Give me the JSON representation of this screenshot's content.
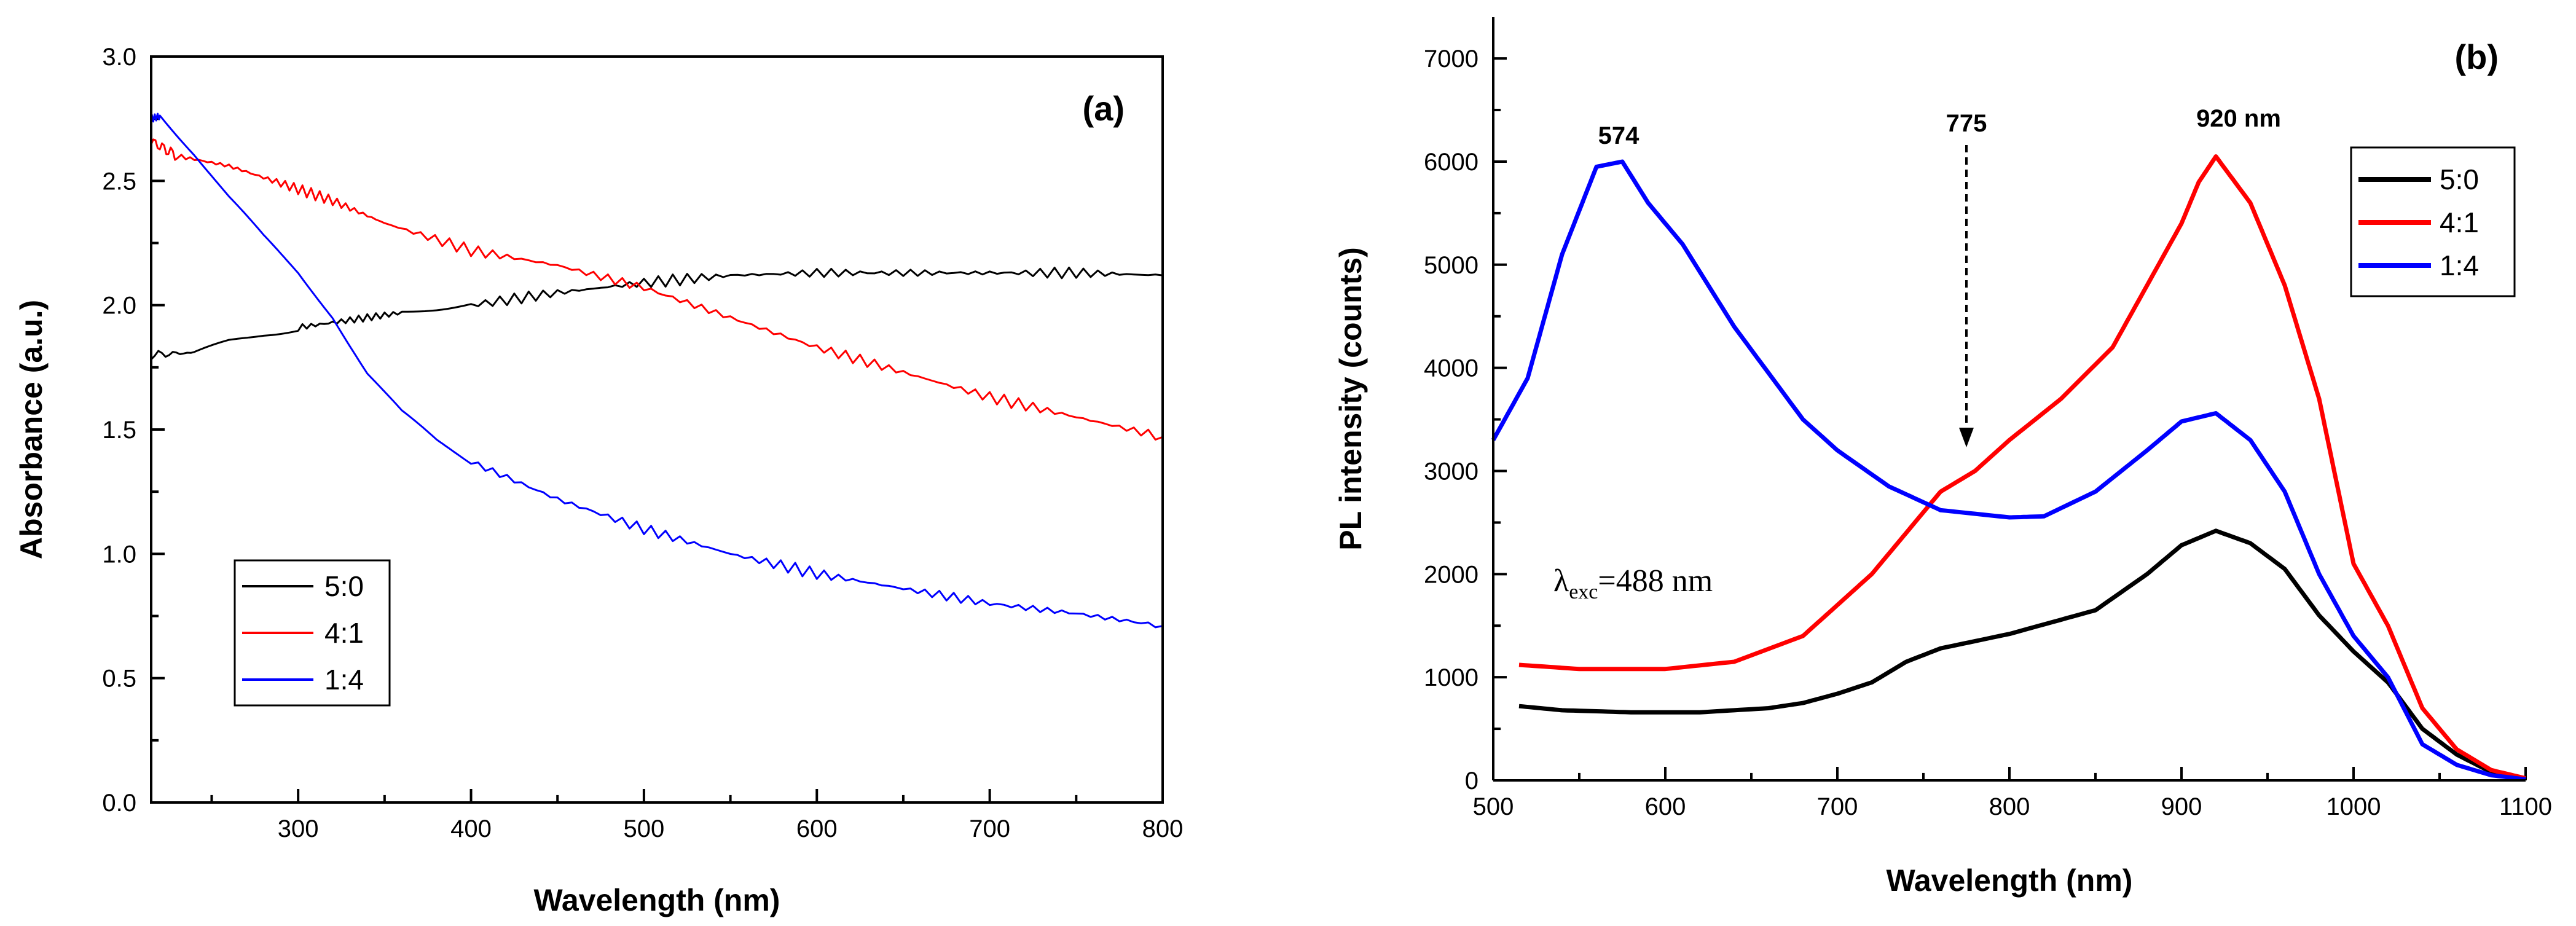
{
  "chart_data": [
    {
      "type": "line",
      "panel_label": "(a)",
      "xlabel": "Wavelength (nm)",
      "ylabel": "Absorbance (a.u.)",
      "xlim": [
        215,
        800
      ],
      "ylim": [
        0.0,
        3.0
      ],
      "xticks": [
        300,
        400,
        500,
        600,
        700,
        800
      ],
      "xtick_labels": [
        "300",
        "400",
        "500",
        "600",
        "700",
        "800"
      ],
      "yticks": [
        0.0,
        0.5,
        1.0,
        1.5,
        2.0,
        2.5,
        3.0
      ],
      "ytick_labels": [
        "0.0",
        "0.5",
        "1.0",
        "1.5",
        "2.0",
        "2.5",
        "3.0"
      ],
      "legend_position": "lower-left",
      "series": [
        {
          "name": "5:0",
          "color": "#000000",
          "x": [
            215,
            240,
            260,
            280,
            300,
            330,
            360,
            400,
            450,
            500,
            550,
            600,
            650,
            700,
            750,
            800
          ],
          "y": [
            1.8,
            1.81,
            1.86,
            1.89,
            1.91,
            1.94,
            1.97,
            2.0,
            2.05,
            2.09,
            2.12,
            2.13,
            2.13,
            2.13,
            2.13,
            2.12
          ]
        },
        {
          "name": "4:1",
          "color": "#ff0000",
          "x": [
            215,
            230,
            260,
            290,
            320,
            350,
            400,
            450,
            500,
            550,
            600,
            650,
            700,
            750,
            800
          ],
          "y": [
            2.66,
            2.6,
            2.56,
            2.49,
            2.42,
            2.33,
            2.22,
            2.16,
            2.07,
            1.95,
            1.83,
            1.73,
            1.63,
            1.55,
            1.47
          ]
        },
        {
          "name": "1:4",
          "color": "#0000ff",
          "x": [
            215,
            220,
            240,
            260,
            280,
            300,
            320,
            340,
            360,
            380,
            400,
            450,
            500,
            550,
            600,
            650,
            700,
            750,
            800
          ],
          "y": [
            2.75,
            2.76,
            2.6,
            2.42,
            2.26,
            2.12,
            1.95,
            1.72,
            1.56,
            1.45,
            1.37,
            1.22,
            1.1,
            1.0,
            0.92,
            0.86,
            0.8,
            0.76,
            0.71
          ]
        }
      ]
    },
    {
      "type": "line",
      "panel_label": "(b)",
      "xlabel": "Wavelength (nm)",
      "ylabel": "PL intensity (counts)",
      "xlim": [
        500,
        1100
      ],
      "ylim": [
        0,
        7400
      ],
      "xticks": [
        500,
        600,
        700,
        800,
        900,
        1000,
        1100
      ],
      "xtick_labels": [
        "500",
        "600",
        "700",
        "800",
        "900",
        "1000",
        "1100"
      ],
      "yticks": [
        0,
        1000,
        2000,
        3000,
        4000,
        5000,
        6000,
        7000
      ],
      "ytick_labels": [
        "0",
        "1000",
        "2000",
        "3000",
        "4000",
        "5000",
        "6000",
        "7000"
      ],
      "legend_position": "top-right",
      "annotations": {
        "peak_574": "574",
        "peak_775": "775",
        "peak_920": "920 nm",
        "lambda_symbol": "λ",
        "lambda_sub": "exc",
        "lambda_value": "=488 nm"
      },
      "series": [
        {
          "name": "5:0",
          "color": "#000000",
          "x": [
            515,
            540,
            580,
            620,
            660,
            680,
            700,
            720,
            740,
            760,
            800,
            850,
            880,
            900,
            920,
            940,
            960,
            980,
            1000,
            1020,
            1040,
            1060,
            1080,
            1100
          ],
          "y": [
            720,
            680,
            660,
            660,
            700,
            750,
            840,
            950,
            1150,
            1280,
            1420,
            1650,
            2000,
            2280,
            2420,
            2300,
            2050,
            1600,
            1250,
            950,
            500,
            250,
            80,
            20
          ]
        },
        {
          "name": "4:1",
          "color": "#ff0000",
          "x": [
            515,
            550,
            600,
            640,
            680,
            700,
            720,
            740,
            760,
            780,
            800,
            830,
            860,
            880,
            900,
            910,
            920,
            940,
            960,
            980,
            1000,
            1020,
            1040,
            1060,
            1080,
            1100
          ],
          "y": [
            1120,
            1080,
            1080,
            1150,
            1400,
            1700,
            2000,
            2400,
            2800,
            3000,
            3300,
            3700,
            4200,
            4800,
            5400,
            5800,
            6050,
            5600,
            4800,
            3700,
            2100,
            1500,
            700,
            300,
            100,
            20
          ]
        },
        {
          "name": "1:4",
          "color": "#0000ff",
          "x": [
            500,
            520,
            540,
            560,
            575,
            590,
            610,
            640,
            680,
            700,
            730,
            760,
            800,
            820,
            850,
            880,
            900,
            920,
            940,
            960,
            980,
            1000,
            1020,
            1040,
            1060,
            1080,
            1100
          ],
          "y": [
            3300,
            3900,
            5100,
            5950,
            6000,
            5600,
            5200,
            4400,
            3500,
            3200,
            2850,
            2620,
            2550,
            2560,
            2800,
            3200,
            3480,
            3560,
            3300,
            2800,
            2000,
            1400,
            1000,
            350,
            150,
            50,
            10
          ]
        }
      ]
    }
  ]
}
